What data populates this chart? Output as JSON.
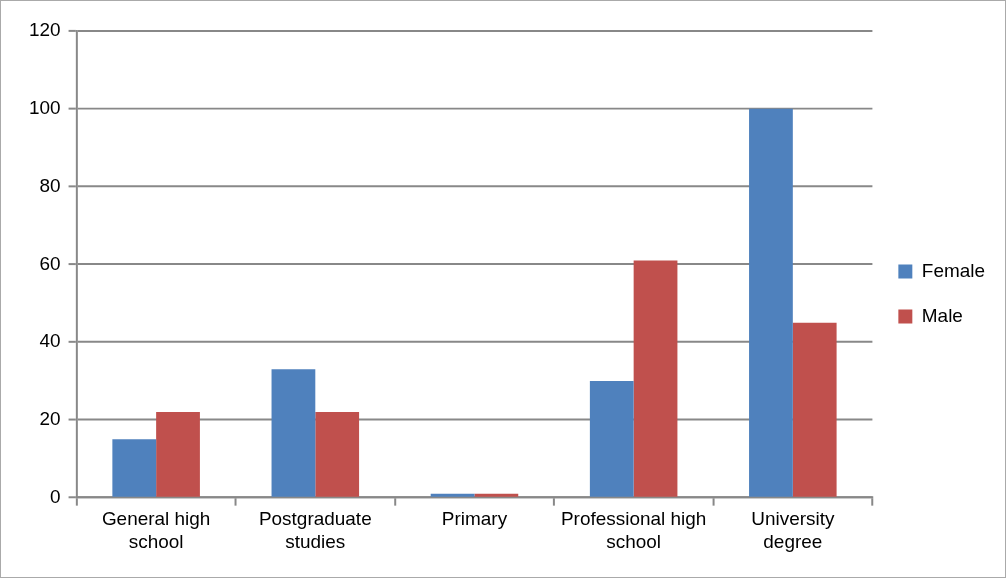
{
  "chart_data": {
    "type": "bar",
    "categories": [
      "General high school",
      "Postgraduate studies",
      "Primary",
      "Professional high school",
      "University degree"
    ],
    "series": [
      {
        "name": "Female",
        "color": "#4f81bd",
        "values": [
          15,
          33,
          1,
          30,
          100
        ]
      },
      {
        "name": "Male",
        "color": "#c0504d",
        "values": [
          22,
          22,
          1,
          61,
          45
        ]
      }
    ],
    "ylim": [
      0,
      120
    ],
    "yticks": [
      0,
      20,
      40,
      60,
      80,
      100,
      120
    ],
    "grid": "y",
    "legend": "right"
  }
}
